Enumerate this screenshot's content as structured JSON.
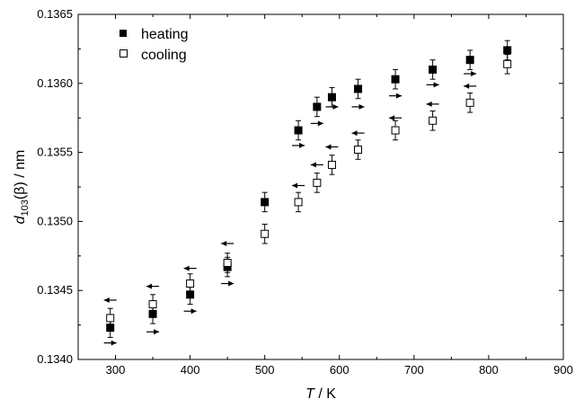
{
  "chart_data": {
    "type": "scatter",
    "xlabel_italic": "T",
    "xlabel_rest": " / K",
    "ylabel_italic": "d",
    "ylabel_sub": "103",
    "ylabel_rest": "(β) / nm",
    "xlim": [
      250,
      900
    ],
    "ylim": [
      0.134,
      0.1365
    ],
    "xticks": [
      300,
      400,
      500,
      600,
      700,
      800,
      900
    ],
    "xtick_labels": [
      "300",
      "400",
      "500",
      "600",
      "700",
      "800",
      "900"
    ],
    "yticks": [
      0.134,
      0.1345,
      0.135,
      0.1355,
      0.136,
      0.1365
    ],
    "ytick_labels": [
      "0.1340",
      "0.1345",
      "0.1350",
      "0.1355",
      "0.1360",
      "0.1365"
    ],
    "grid": false,
    "legend_position": "top-left",
    "series": [
      {
        "name": "heating",
        "marker": "filled-square",
        "x": [
          293,
          350,
          400,
          450,
          500,
          545,
          570,
          590,
          625,
          675,
          725,
          775,
          825
        ],
        "y": [
          0.13423,
          0.13433,
          0.13447,
          0.13467,
          0.13514,
          0.13566,
          0.13583,
          0.1359,
          0.13596,
          0.13603,
          0.1361,
          0.13617,
          0.13624
        ],
        "err": [
          7e-05,
          7e-05,
          7e-05,
          7e-05,
          7e-05,
          7e-05,
          7e-05,
          7e-05,
          7e-05,
          7e-05,
          7e-05,
          7e-05,
          7e-05
        ]
      },
      {
        "name": "cooling",
        "marker": "open-square",
        "x": [
          293,
          350,
          400,
          450,
          500,
          545,
          570,
          590,
          625,
          675,
          725,
          775,
          825
        ],
        "y": [
          0.1343,
          0.1344,
          0.13455,
          0.1347,
          0.13491,
          0.13514,
          0.13528,
          0.13541,
          0.13552,
          0.13566,
          0.13573,
          0.13586,
          0.13614
        ],
        "err": [
          7e-05,
          7e-05,
          7e-05,
          7e-05,
          7e-05,
          7e-05,
          7e-05,
          7e-05,
          7e-05,
          7e-05,
          7e-05,
          7e-05,
          7e-05
        ]
      }
    ],
    "arrows_right": {
      "x": [
        293,
        350,
        400,
        450,
        545,
        570,
        590,
        625,
        675,
        725,
        775
      ],
      "y": [
        0.13412,
        0.1342,
        0.13435,
        0.13455,
        0.13555,
        0.13571,
        0.13583,
        0.13583,
        0.13591,
        0.13599,
        0.13607
      ]
    },
    "arrows_left": {
      "x": [
        293,
        350,
        400,
        450,
        545,
        570,
        590,
        625,
        675,
        725,
        775
      ],
      "y": [
        0.13443,
        0.13453,
        0.13466,
        0.13484,
        0.13526,
        0.13541,
        0.13554,
        0.13564,
        0.13575,
        0.13585,
        0.13598
      ]
    }
  }
}
